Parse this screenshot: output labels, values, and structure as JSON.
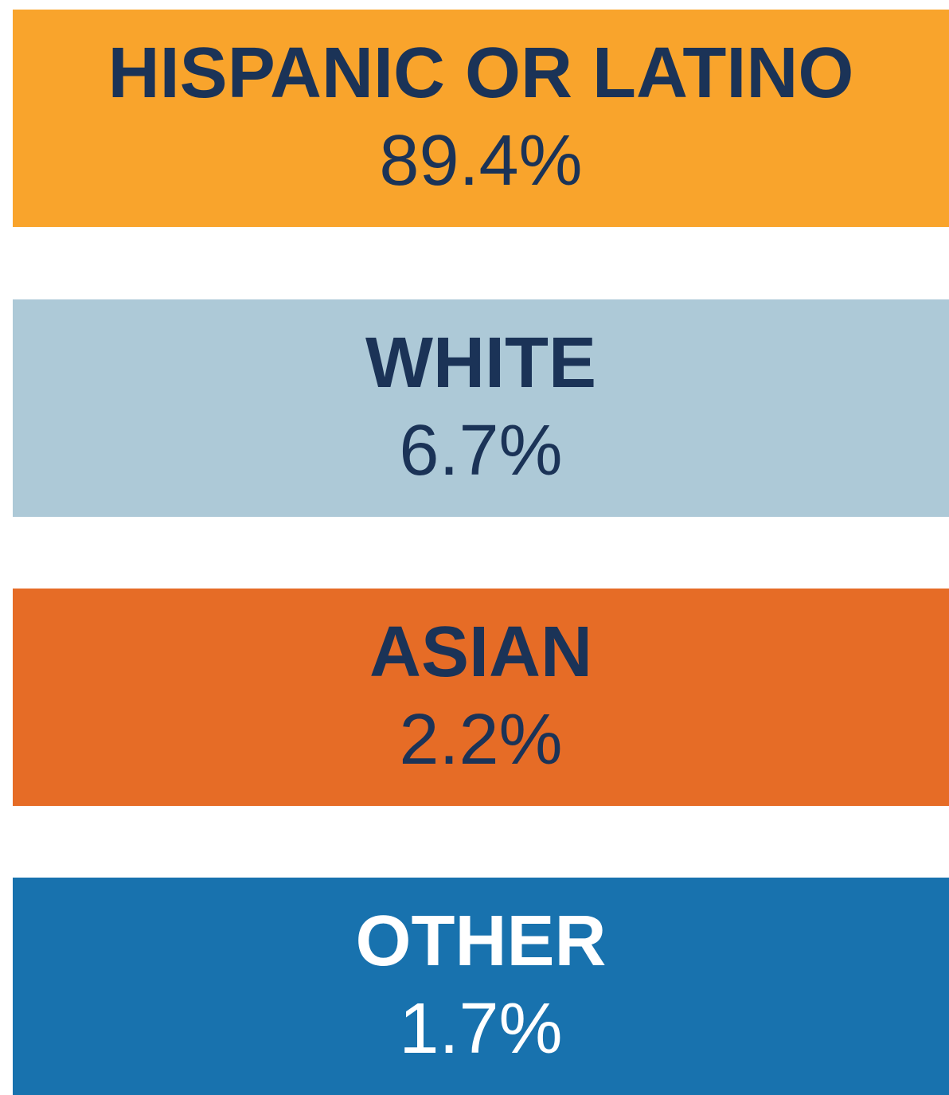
{
  "items": [
    {
      "label": "HISPANIC OR LATINO",
      "value": "89.4%",
      "color": "#f9a42c",
      "text_color": "#1b3357"
    },
    {
      "label": "WHITE",
      "value": "6.7%",
      "color": "#adc9d7",
      "text_color": "#1b3357"
    },
    {
      "label": "ASIAN",
      "value": "2.2%",
      "color": "#e66c26",
      "text_color": "#1b3357"
    },
    {
      "label": "OTHER",
      "value": "1.7%",
      "color": "#1872ae",
      "text_color": "#ffffff"
    }
  ]
}
